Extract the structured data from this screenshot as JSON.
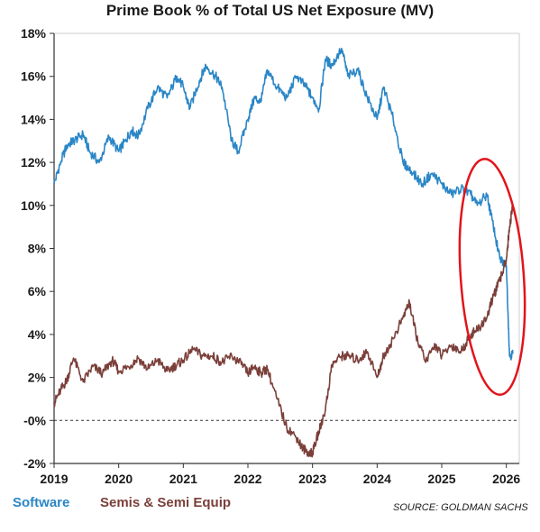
{
  "title": "Prime Book % of Total US Net Exposure (MV)",
  "source": "SOURCE: GOLDMAN SACHS",
  "colors": {
    "software": "#2a86c6",
    "semis": "#7b3f3a",
    "highlight_ellipse": "#e2141b",
    "axis": "#333333"
  },
  "chart_data": {
    "type": "line",
    "title": "Prime Book % of Total US Net Exposure (MV)",
    "xlabel": "",
    "ylabel": "",
    "xlim": [
      2019.0,
      2026.2
    ],
    "ylim": [
      -2,
      18
    ],
    "x_ticks": [
      2019,
      2020,
      2021,
      2022,
      2023,
      2024,
      2025,
      2026
    ],
    "x_tick_labels": [
      "2019",
      "2020",
      "2021",
      "2022",
      "2023",
      "2024",
      "2025",
      "2026"
    ],
    "y_ticks": [
      -2,
      0,
      2,
      4,
      6,
      8,
      10,
      12,
      14,
      16,
      18
    ],
    "y_tick_labels": [
      "-2%",
      "-0%",
      "2%",
      "4%",
      "6%",
      "8%",
      "10%",
      "12%",
      "14%",
      "16%",
      "18%"
    ],
    "grid": false,
    "reference_line": {
      "y": 0,
      "style": "dashed"
    },
    "legend": "bottom-left",
    "annotation": "red ellipse around 2025.6-2026.2 highlighting the recent crossover",
    "series": [
      {
        "name": "Software",
        "color": "#2a86c6",
        "x": [
          2019.0,
          2019.1,
          2019.2,
          2019.3,
          2019.45,
          2019.55,
          2019.7,
          2019.85,
          2020.0,
          2020.1,
          2020.2,
          2020.3,
          2020.45,
          2020.6,
          2020.75,
          2020.9,
          2021.0,
          2021.1,
          2021.25,
          2021.35,
          2021.5,
          2021.6,
          2021.75,
          2021.85,
          2022.0,
          2022.1,
          2022.2,
          2022.3,
          2022.45,
          2022.6,
          2022.75,
          2022.9,
          2023.0,
          2023.1,
          2023.2,
          2023.3,
          2023.45,
          2023.55,
          2023.7,
          2023.85,
          2024.0,
          2024.1,
          2024.25,
          2024.4,
          2024.55,
          2024.7,
          2024.85,
          2025.0,
          2025.15,
          2025.3,
          2025.45,
          2025.55,
          2025.7,
          2025.8,
          2025.9,
          2026.0,
          2026.05,
          2026.1
        ],
        "values": [
          11.0,
          12.0,
          12.8,
          13.0,
          13.3,
          12.5,
          12.0,
          13.2,
          12.5,
          13.0,
          13.5,
          13.2,
          14.5,
          15.5,
          15.0,
          16.0,
          15.5,
          14.5,
          15.8,
          16.5,
          16.0,
          15.5,
          13.0,
          12.5,
          14.0,
          15.0,
          14.8,
          16.3,
          15.5,
          15.0,
          16.0,
          15.5,
          15.0,
          14.5,
          16.8,
          16.5,
          17.3,
          16.0,
          16.3,
          15.0,
          14.0,
          15.5,
          14.0,
          12.0,
          11.5,
          11.0,
          11.5,
          11.0,
          10.5,
          10.8,
          10.5,
          10.0,
          10.5,
          9.0,
          7.5,
          7.2,
          3.0,
          3.1
        ]
      },
      {
        "name": "Semis & Semi Equip",
        "color": "#7b3f3a",
        "x": [
          2019.0,
          2019.1,
          2019.2,
          2019.3,
          2019.45,
          2019.6,
          2019.75,
          2019.9,
          2020.0,
          2020.15,
          2020.3,
          2020.45,
          2020.6,
          2020.75,
          2020.9,
          2021.0,
          2021.15,
          2021.3,
          2021.45,
          2021.6,
          2021.75,
          2021.9,
          2022.0,
          2022.1,
          2022.2,
          2022.3,
          2022.45,
          2022.6,
          2022.75,
          2022.85,
          2022.95,
          2023.0,
          2023.1,
          2023.2,
          2023.3,
          2023.45,
          2023.55,
          2023.7,
          2023.85,
          2024.0,
          2024.1,
          2024.25,
          2024.4,
          2024.5,
          2024.6,
          2024.75,
          2024.9,
          2025.0,
          2025.15,
          2025.3,
          2025.45,
          2025.55,
          2025.7,
          2025.8,
          2025.9,
          2026.0,
          2026.05,
          2026.1
        ],
        "values": [
          0.8,
          1.4,
          1.9,
          2.9,
          1.8,
          2.5,
          2.2,
          2.8,
          2.3,
          2.5,
          2.9,
          2.4,
          2.8,
          2.3,
          2.6,
          2.8,
          3.3,
          3.0,
          3.0,
          2.7,
          3.0,
          2.6,
          2.2,
          2.5,
          2.2,
          2.4,
          1.0,
          -0.3,
          -0.8,
          -1.3,
          -1.5,
          -1.5,
          -0.5,
          0.5,
          2.6,
          3.0,
          3.0,
          2.8,
          3.2,
          2.0,
          3.0,
          3.8,
          4.8,
          5.5,
          4.0,
          2.7,
          3.5,
          3.0,
          3.5,
          3.2,
          4.0,
          4.2,
          4.8,
          5.8,
          6.5,
          7.5,
          9.0,
          10.0
        ]
      }
    ]
  },
  "legend_items": {
    "software": "Software",
    "semis": "Semis & Semi Equip"
  }
}
